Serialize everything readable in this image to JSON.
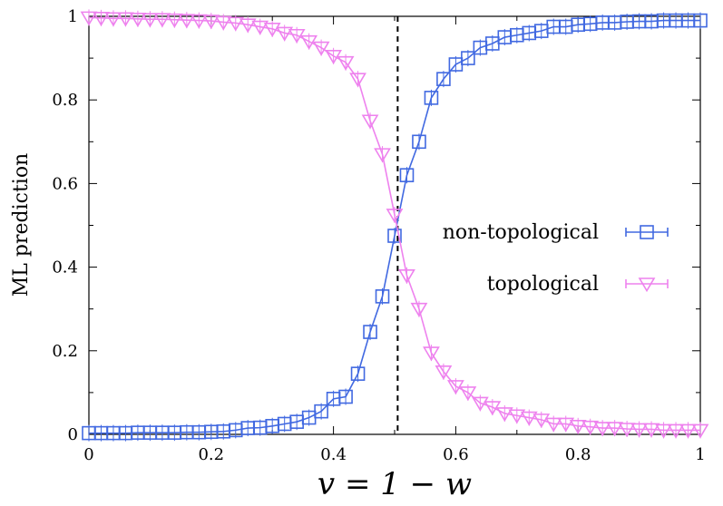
{
  "chart_data": {
    "type": "line",
    "xlabel": "v = 1 − w",
    "ylabel": "ML prediction",
    "xlim": [
      0,
      1
    ],
    "ylim": [
      0,
      1
    ],
    "x_ticks": [
      "0",
      "0.2",
      "0.4",
      "0.6",
      "0.8",
      "1"
    ],
    "y_ticks": [
      "0",
      "0.2",
      "0.4",
      "0.6",
      "0.8",
      "1"
    ],
    "grid": false,
    "legend_position": "center-right",
    "vertical_line": {
      "x": 0.505,
      "style": "dashed",
      "color": "#000000"
    },
    "x": [
      0,
      0.02,
      0.04,
      0.06,
      0.08,
      0.1,
      0.12,
      0.14,
      0.16,
      0.18,
      0.2,
      0.22,
      0.24,
      0.26,
      0.28,
      0.3,
      0.32,
      0.34,
      0.36,
      0.38,
      0.4,
      0.42,
      0.44,
      0.46,
      0.48,
      0.5,
      0.52,
      0.54,
      0.56,
      0.58,
      0.6,
      0.62,
      0.64,
      0.66,
      0.68,
      0.7,
      0.72,
      0.74,
      0.76,
      0.78,
      0.8,
      0.82,
      0.84,
      0.86,
      0.88,
      0.9,
      0.92,
      0.94,
      0.96,
      0.98,
      1.0
    ],
    "series": [
      {
        "name": "non-topological",
        "color": "#4169e1",
        "marker": "square",
        "values": [
          0.003,
          0.003,
          0.003,
          0.003,
          0.004,
          0.004,
          0.004,
          0.004,
          0.005,
          0.005,
          0.006,
          0.007,
          0.01,
          0.015,
          0.016,
          0.02,
          0.025,
          0.03,
          0.04,
          0.055,
          0.085,
          0.09,
          0.145,
          0.245,
          0.33,
          0.475,
          0.62,
          0.7,
          0.805,
          0.85,
          0.885,
          0.9,
          0.925,
          0.935,
          0.95,
          0.955,
          0.96,
          0.965,
          0.975,
          0.975,
          0.98,
          0.982,
          0.985,
          0.985,
          0.987,
          0.988,
          0.988,
          0.99,
          0.99,
          0.99,
          0.99
        ]
      },
      {
        "name": "topological",
        "color": "#ee82ee",
        "marker": "triangle-down",
        "values": [
          0.997,
          0.996,
          0.995,
          0.995,
          0.994,
          0.993,
          0.993,
          0.992,
          0.991,
          0.99,
          0.989,
          0.986,
          0.984,
          0.98,
          0.975,
          0.97,
          0.96,
          0.955,
          0.94,
          0.925,
          0.905,
          0.89,
          0.85,
          0.75,
          0.67,
          0.525,
          0.38,
          0.3,
          0.195,
          0.15,
          0.115,
          0.1,
          0.075,
          0.065,
          0.05,
          0.045,
          0.04,
          0.035,
          0.025,
          0.025,
          0.02,
          0.018,
          0.015,
          0.015,
          0.013,
          0.012,
          0.012,
          0.01,
          0.01,
          0.01,
          0.01
        ]
      }
    ]
  }
}
